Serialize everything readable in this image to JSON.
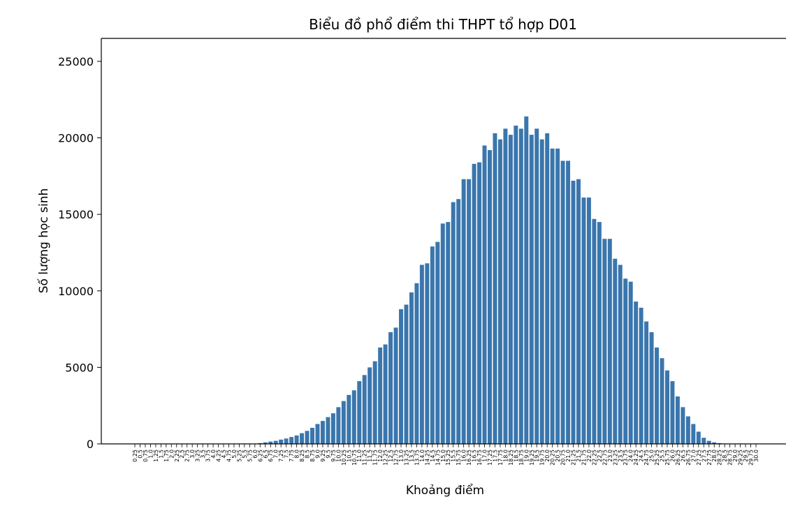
{
  "chart_data": {
    "type": "bar",
    "title": "Biểu đồ phổ điểm thi THPT tổ hợp D01",
    "xlabel": "Khoảng điểm",
    "ylabel": "Số lượng học sinh",
    "ylim": [
      0,
      26500
    ],
    "yticks": [
      0,
      5000,
      10000,
      15000,
      20000,
      25000
    ],
    "bar_color": "#3a76ad",
    "grid": false,
    "categories": [
      "0.25",
      "0.5",
      "0.75",
      "1.0",
      "1.25",
      "1.5",
      "1.75",
      "2.0",
      "2.25",
      "2.5",
      "2.75",
      "3.0",
      "3.25",
      "3.5",
      "3.75",
      "4.0",
      "4.25",
      "4.5",
      "4.75",
      "5.0",
      "5.25",
      "5.5",
      "5.75",
      "6.0",
      "6.25",
      "6.5",
      "6.75",
      "7.0",
      "7.25",
      "7.5",
      "7.75",
      "8.0",
      "8.25",
      "8.5",
      "8.75",
      "9.0",
      "9.25",
      "9.5",
      "9.75",
      "10.0",
      "10.25",
      "10.5",
      "10.75",
      "11.0",
      "11.25",
      "11.5",
      "11.75",
      "12.0",
      "12.25",
      "12.5",
      "12.75",
      "13.0",
      "13.25",
      "13.5",
      "13.75",
      "14.0",
      "14.25",
      "14.5",
      "14.75",
      "15.0",
      "15.25",
      "15.5",
      "15.75",
      "16.0",
      "16.25",
      "16.5",
      "16.75",
      "17.0",
      "17.25",
      "17.5",
      "17.75",
      "18.0",
      "18.25",
      "18.5",
      "18.75",
      "19.0",
      "19.25",
      "19.5",
      "19.75",
      "20.0",
      "20.25",
      "20.5",
      "20.75",
      "21.0",
      "21.25",
      "21.5",
      "21.75",
      "22.0",
      "22.25",
      "22.5",
      "22.75",
      "23.0",
      "23.25",
      "23.5",
      "23.75",
      "24.0",
      "24.25",
      "24.5",
      "24.75",
      "25.0",
      "25.25",
      "25.5",
      "25.75",
      "26.0",
      "26.25",
      "26.5",
      "26.75",
      "27.0",
      "27.25",
      "27.5",
      "27.75",
      "28.0",
      "28.25",
      "28.5",
      "28.75",
      "29.0",
      "29.25",
      "29.5",
      "29.75",
      "30.0"
    ],
    "values": [
      0,
      0,
      0,
      0,
      0,
      0,
      0,
      0,
      0,
      0,
      0,
      0,
      0,
      0,
      0,
      0,
      0,
      0,
      0,
      0,
      0,
      5,
      10,
      20,
      50,
      100,
      150,
      200,
      280,
      350,
      450,
      550,
      700,
      850,
      1050,
      1300,
      1500,
      1750,
      2000,
      2400,
      2800,
      3200,
      3500,
      4100,
      4500,
      5000,
      5400,
      6300,
      6500,
      7300,
      7600,
      8800,
      9100,
      9900,
      10500,
      11700,
      11800,
      12900,
      13200,
      14400,
      14500,
      15800,
      16000,
      17300,
      17300,
      18300,
      18400,
      19500,
      19200,
      20300,
      19900,
      20600,
      20200,
      20800,
      20600,
      21400,
      20200,
      20600,
      19900,
      20300,
      19300,
      19300,
      18500,
      18500,
      17200,
      17300,
      16100,
      16100,
      14700,
      14500,
      13400,
      13400,
      12100,
      11700,
      10800,
      10600,
      9300,
      8900,
      8000,
      7300,
      6300,
      5600,
      4800,
      4100,
      3100,
      2400,
      1800,
      1300,
      800,
      400,
      200,
      100,
      50,
      20,
      10,
      5,
      0,
      0,
      0,
      0
    ]
  }
}
